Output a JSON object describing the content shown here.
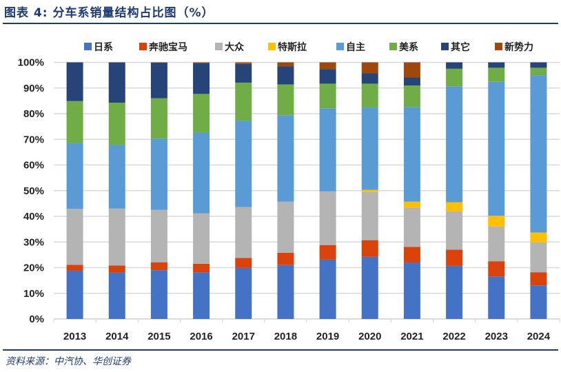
{
  "title": "图表 4:  分车系销量结构占比图（%）",
  "source": "资料来源：中汽协、华创证券",
  "chart_data": {
    "type": "bar",
    "stacked": true,
    "title": "图表 4:  分车系销量结构占比图（%）",
    "xlabel": "",
    "ylabel": "",
    "ylim": [
      0,
      100
    ],
    "y_ticks": [
      "0%",
      "10%",
      "20%",
      "30%",
      "40%",
      "50%",
      "60%",
      "70%",
      "80%",
      "90%",
      "100%"
    ],
    "grid": true,
    "legend_position": "top",
    "categories": [
      "2013",
      "2014",
      "2015",
      "2016",
      "2017",
      "2018",
      "2019",
      "2020",
      "2021",
      "2022",
      "2023",
      "2024"
    ],
    "series": [
      {
        "name": "日系",
        "color": "#4472C4",
        "values": [
          18.8,
          18.1,
          19.0,
          18.2,
          19.9,
          21.0,
          23.2,
          24.2,
          22.0,
          20.7,
          16.6,
          13.1
        ]
      },
      {
        "name": "奔驰宝马",
        "color": "#D9430B",
        "values": [
          2.3,
          2.7,
          3.1,
          3.3,
          3.9,
          4.8,
          5.6,
          6.5,
          6.1,
          6.3,
          5.9,
          5.1
        ]
      },
      {
        "name": "大众",
        "color": "#B4B4B4",
        "values": [
          21.8,
          22.2,
          20.4,
          19.7,
          19.8,
          19.9,
          20.9,
          18.9,
          15.3,
          15.0,
          13.5,
          11.7
        ]
      },
      {
        "name": "特斯拉",
        "color": "#FFC000",
        "values": [
          0,
          0,
          0,
          0,
          0,
          0,
          0,
          0.7,
          2.3,
          3.5,
          4.2,
          3.8
        ]
      },
      {
        "name": "自主",
        "color": "#5B9BD5",
        "values": [
          25.7,
          24.8,
          27.8,
          31.4,
          33.7,
          33.7,
          32.4,
          32.1,
          36.9,
          45.2,
          52.2,
          61.3
        ]
      },
      {
        "name": "美系",
        "color": "#70AD47",
        "values": [
          16.3,
          16.5,
          15.7,
          15.1,
          14.8,
          12.0,
          9.6,
          9.3,
          8.4,
          6.8,
          5.5,
          2.9
        ]
      },
      {
        "name": "其它",
        "color": "#264478",
        "values": [
          15.1,
          15.7,
          13.9,
          12.0,
          7.3,
          7.0,
          5.7,
          4.0,
          3.1,
          2.5,
          2.1,
          2.1
        ]
      },
      {
        "name": "新势力",
        "color": "#9E480E",
        "values": [
          0,
          0,
          0.1,
          0.3,
          0.6,
          1.6,
          2.6,
          4.3,
          5.9,
          0,
          0,
          0
        ]
      }
    ]
  }
}
